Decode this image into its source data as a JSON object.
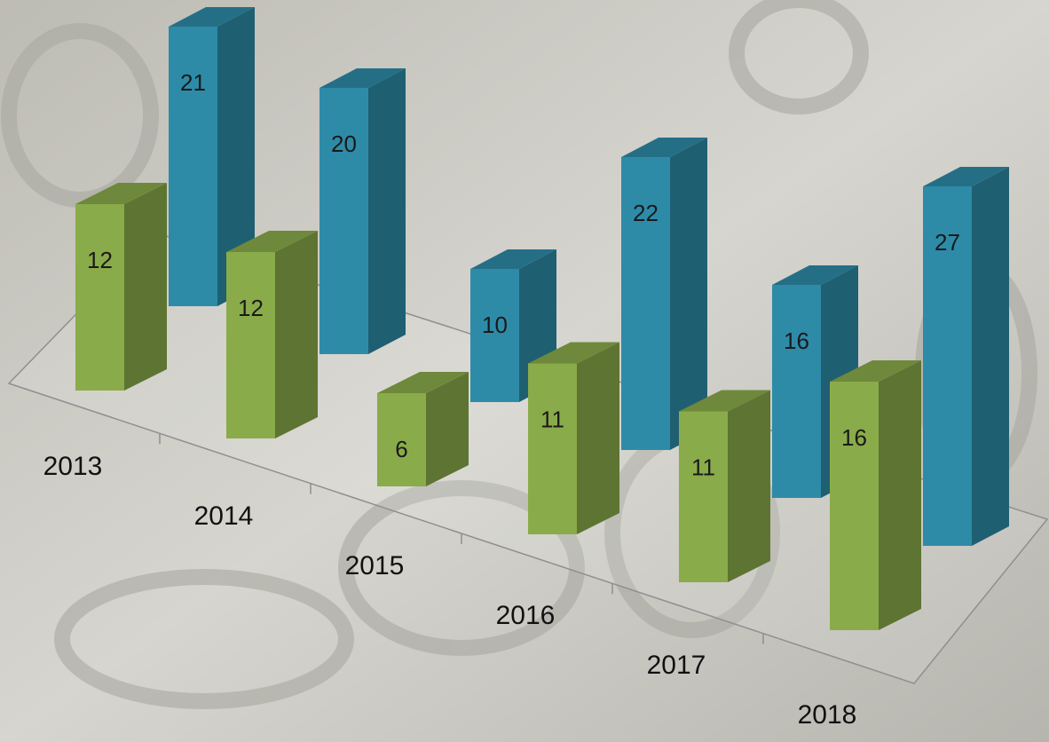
{
  "chart_data": {
    "type": "bar3d",
    "categories": [
      "2013",
      "2014",
      "2015",
      "2016",
      "2017",
      "2018"
    ],
    "series": [
      {
        "color": "#2e8ba8",
        "values": [
          21,
          20,
          10,
          22,
          16,
          27
        ]
      },
      {
        "color": "#8aab4a",
        "values": [
          12,
          12,
          6,
          11,
          11,
          16
        ]
      }
    ]
  }
}
